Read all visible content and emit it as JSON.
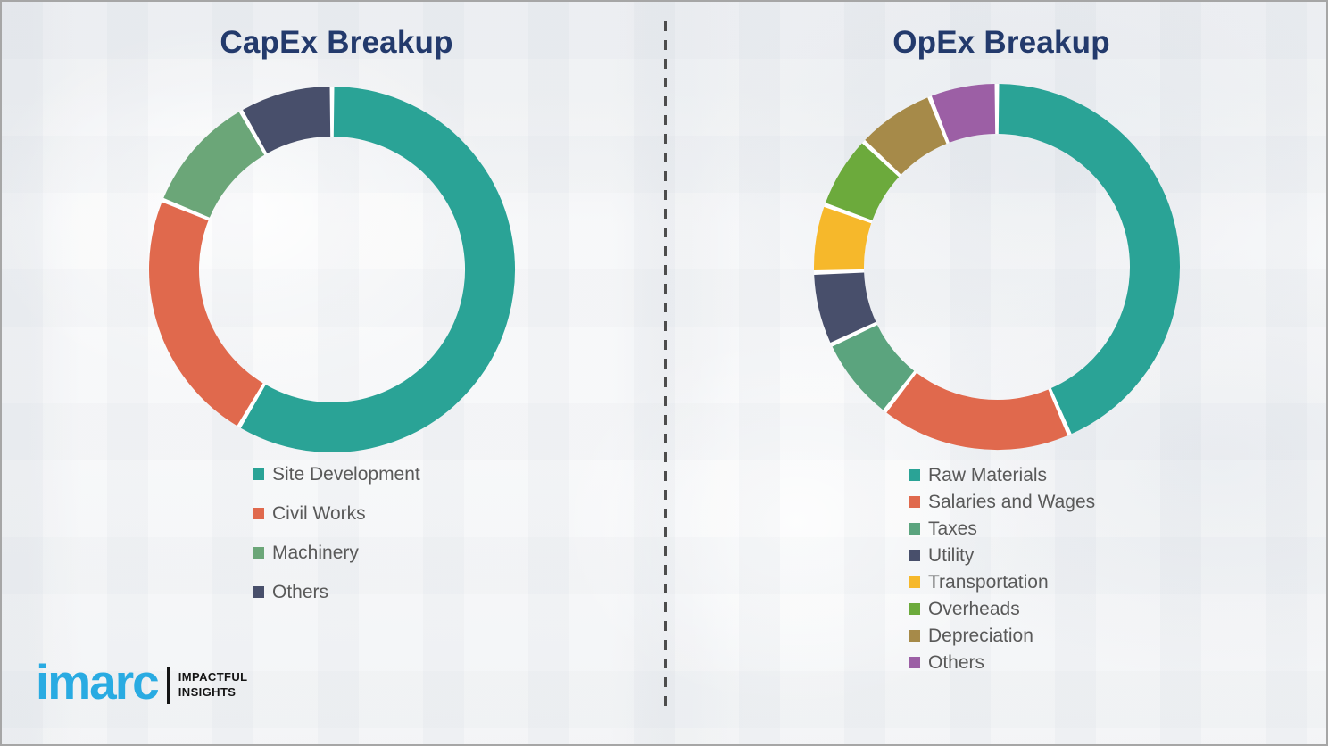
{
  "page": {
    "background_color": "#f3f4f6",
    "border_color": "#a6a6a6",
    "divider_color": "#4d4d4d",
    "title_color": "#233a6c",
    "legend_text_color": "#595959",
    "separator_color": "#ffffff"
  },
  "logo": {
    "brand": "imarc",
    "brand_color": "#29abe2",
    "tagline_line1": "IMPACTFUL",
    "tagline_line2": "INSIGHTS",
    "tagline_color": "#141414"
  },
  "chart_data": [
    {
      "type": "pie",
      "variant": "donut",
      "title": "CapEx Breakup",
      "legend_position": "bottom-left",
      "start_angle_deg": 0,
      "clockwise": true,
      "unit": "percent",
      "categories": [
        "Site Development",
        "Civil Works",
        "Machinery",
        "Others"
      ],
      "values": [
        58.5,
        22.7,
        10.5,
        8.3
      ],
      "colors": [
        "#2aa396",
        "#e0694d",
        "#6ba678",
        "#484f6b"
      ]
    },
    {
      "type": "pie",
      "variant": "donut",
      "title": "OpEx Breakup",
      "legend_position": "bottom-left",
      "start_angle_deg": 0,
      "clockwise": true,
      "unit": "percent",
      "categories": [
        "Raw Materials",
        "Salaries and Wages",
        "Taxes",
        "Utility",
        "Transportation",
        "Overheads",
        "Depreciation",
        "Others"
      ],
      "values": [
        43.5,
        17,
        7.5,
        6.5,
        6,
        6.5,
        7,
        6
      ],
      "colors": [
        "#2aa396",
        "#e0694d",
        "#5ba47e",
        "#484f6b",
        "#f6b82b",
        "#6caa3c",
        "#a68a49",
        "#9c5fa5"
      ]
    }
  ]
}
